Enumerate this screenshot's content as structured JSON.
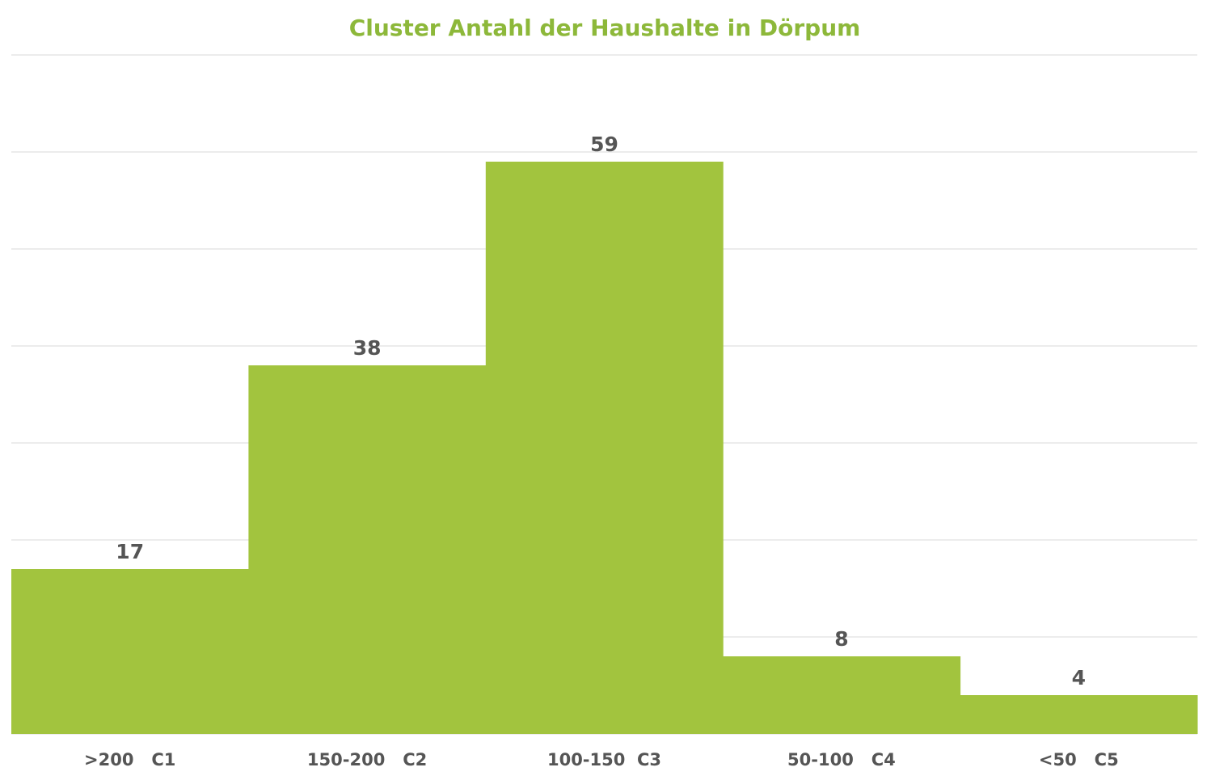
{
  "chart_data": {
    "type": "bar",
    "title": "Cluster Antahl der Haushalte in Dörpum",
    "categories": [
      ">200   C1",
      "150-200   C2",
      "100-150  C3",
      "50-100   C4",
      "<50   C5"
    ],
    "values": [
      17,
      38,
      59,
      8,
      4
    ],
    "color": "#a2c43e",
    "ylim": [
      0,
      70
    ],
    "yticks": [
      0,
      10,
      20,
      30,
      40,
      50,
      60,
      70
    ],
    "grid": true
  }
}
